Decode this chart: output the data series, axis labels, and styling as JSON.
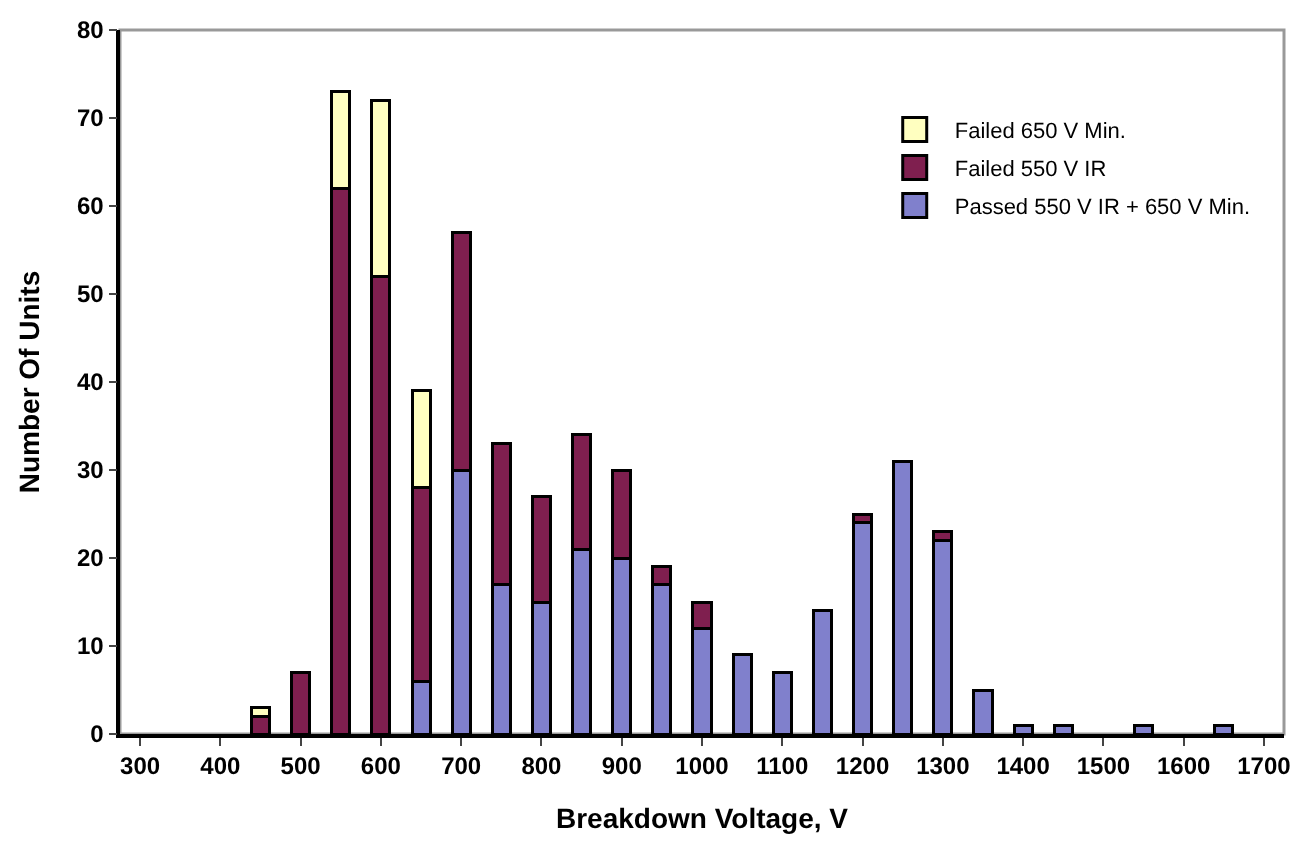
{
  "chart_data": {
    "type": "bar",
    "stacked": true,
    "xlabel": "Breakdown Voltage, V",
    "ylabel": "Number Of Units",
    "categories": [
      "300",
      null,
      "400",
      null,
      "500",
      null,
      "600",
      null,
      "700",
      null,
      "800",
      null,
      "900",
      null,
      "1000",
      null,
      "1100",
      null,
      "1200",
      null,
      "1300",
      null,
      "1400",
      null,
      "1500",
      null,
      "1600",
      null,
      "1700"
    ],
    "series": [
      {
        "name": "Passed 550 V IR + 650 V Min.",
        "color": "#8080cc",
        "values": [
          null,
          null,
          null,
          null,
          null,
          null,
          null,
          6,
          30,
          17,
          15,
          21,
          20,
          17,
          12,
          9,
          7,
          14,
          24,
          31,
          22,
          5,
          1,
          1,
          null,
          1,
          null,
          1,
          null
        ]
      },
      {
        "name": "Failed 550 V IR",
        "color": "#7f1f4f",
        "values": [
          null,
          null,
          null,
          2,
          7,
          62,
          52,
          22,
          27,
          16,
          12,
          13,
          10,
          2,
          3,
          null,
          null,
          null,
          1,
          null,
          1,
          null,
          null,
          null,
          null,
          null,
          null,
          null,
          null
        ]
      },
      {
        "name": "Failed 650 V Min.",
        "color": "#ffffc0",
        "values": [
          null,
          null,
          null,
          1,
          null,
          11,
          20,
          11,
          null,
          null,
          null,
          null,
          null,
          null,
          null,
          null,
          null,
          null,
          null,
          null,
          null,
          null,
          null,
          null,
          null,
          null,
          null,
          null,
          null
        ]
      }
    ],
    "ylim": [
      0,
      80
    ],
    "yticks": [
      0,
      10,
      20,
      30,
      40,
      50,
      60,
      70,
      80
    ],
    "grid": false,
    "legend": "top right"
  }
}
